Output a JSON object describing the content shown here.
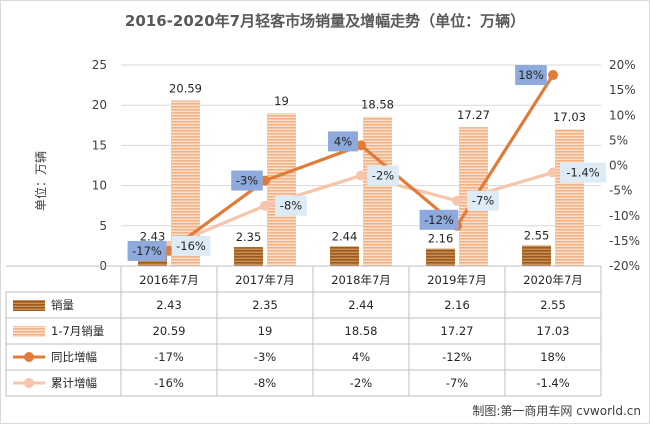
{
  "chart_data": {
    "type": "bar",
    "title": "2016-2020年7月轻客市场销量及增幅走势（单位：万辆）",
    "ylabel": "单位：万辆",
    "categories": [
      "2016年7月",
      "2017年7月",
      "2018年7月",
      "2019年7月",
      "2020年7月"
    ],
    "ylim": [
      0,
      25
    ],
    "y_ticks": [
      "0",
      "5",
      "10",
      "15",
      "20",
      "25"
    ],
    "y2lim": [
      -20,
      20
    ],
    "y2_ticks": [
      "-20%",
      "-15%",
      "-10%",
      "-5%",
      "0%",
      "5%",
      "10%",
      "15%",
      "20%"
    ],
    "grid": true,
    "series": [
      {
        "name": "销量",
        "kind": "bar",
        "axis": "left",
        "color": "#9C5A1F",
        "values": [
          2.43,
          2.35,
          2.44,
          2.16,
          2.55
        ],
        "labels": [
          "2.43",
          "2.35",
          "2.44",
          "2.16",
          "2.55"
        ]
      },
      {
        "name": "1-7月销量",
        "kind": "bar",
        "axis": "left",
        "color": "#F4B183",
        "values": [
          20.59,
          19,
          18.58,
          17.27,
          17.03
        ],
        "labels": [
          "20.59",
          "19",
          "18.58",
          "17.27",
          "17.03"
        ]
      },
      {
        "name": "同比增幅",
        "kind": "line",
        "axis": "right",
        "color": "#E07B39",
        "values": [
          -17,
          -3,
          4,
          -12,
          18
        ],
        "labels": [
          "-17%",
          "-3%",
          "4%",
          "-12%",
          "18%"
        ]
      },
      {
        "name": "累计增幅",
        "kind": "line",
        "axis": "right",
        "color": "#F7C4AC",
        "values": [
          -16,
          -8,
          -2,
          -7,
          -1.4
        ],
        "labels": [
          "-16%",
          "-8%",
          "-2%",
          "-7%",
          "-1.4%"
        ]
      }
    ]
  },
  "colors": {
    "label_box_yoy": "#8EA9DB",
    "label_box_cum": "#DDEBF7",
    "grid": "#d9d9d9"
  },
  "credit": "制图:第一商用车网 cvworld.cn"
}
